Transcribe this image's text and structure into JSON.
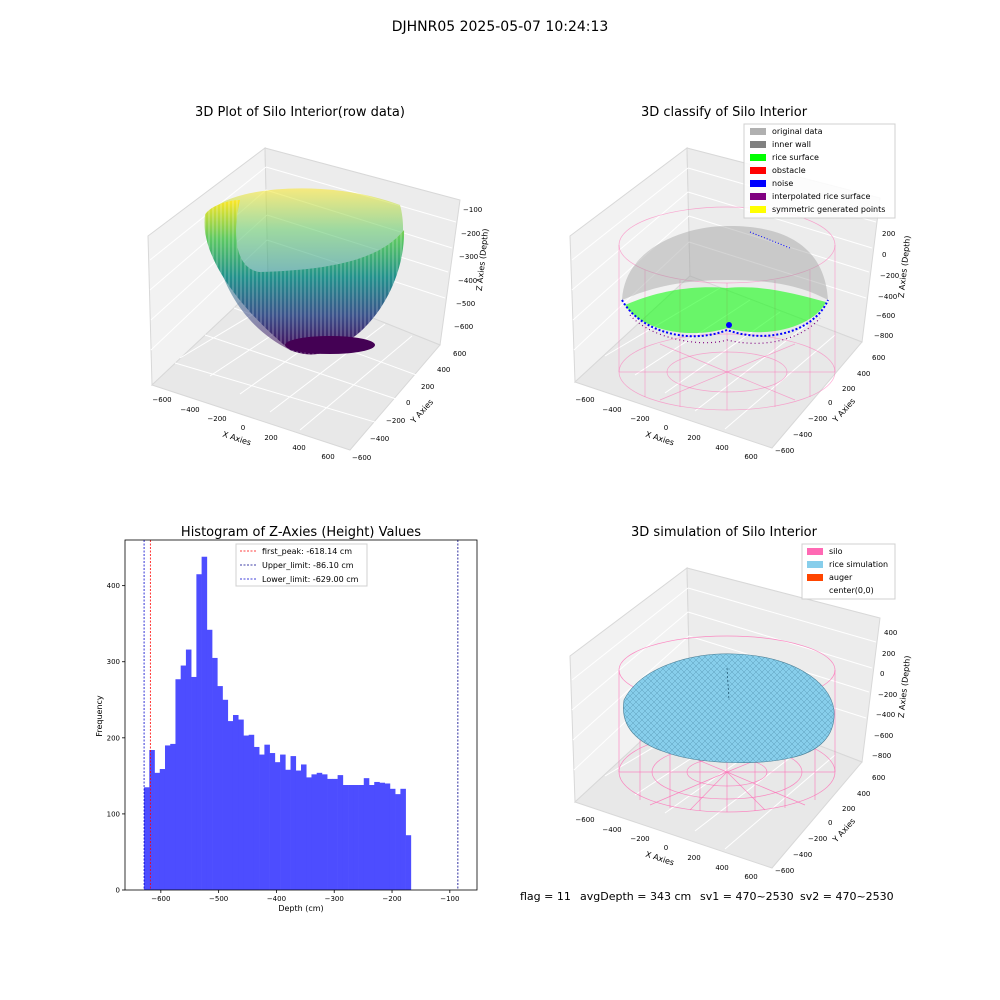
{
  "figure_title": "DJHNR05 2025-05-07 10:24:13",
  "colors": {
    "hist_bar": "#4d4dff",
    "first_peak": "#ff0000",
    "limit_line": "#00008b",
    "silo": "#ff69b4",
    "rice_sim": "#87ceeb",
    "auger": "#ff4500",
    "rice_surface": "#00ff00",
    "noise": "#0000ff"
  },
  "chart_data": [
    {
      "type": "scatter3d",
      "title": "3D Plot of Silo Interior(row data)",
      "xlabel": "X Axies",
      "ylabel": "Y Axies",
      "zlabel": "Z Axies (Depth)",
      "x_ticks": [
        "−600",
        "−400",
        "−200",
        "0",
        "200",
        "400",
        "600"
      ],
      "y_ticks": [
        "600",
        "400",
        "200",
        "0",
        "−200",
        "−400",
        "−600"
      ],
      "z_ticks": [
        "−100",
        "−200",
        "−300",
        "−400",
        "−500",
        "−600"
      ],
      "zlim": [
        -629,
        -86
      ]
    },
    {
      "type": "scatter3d",
      "title": "3D classify of Silo Interior",
      "xlabel": "X Axies",
      "ylabel": "Y Axies",
      "zlabel": "Z Axies (Depth)",
      "x_ticks": [
        "−600",
        "−400",
        "−200",
        "0",
        "200",
        "400",
        "600"
      ],
      "y_ticks": [
        "600",
        "400",
        "200",
        "0",
        "−200",
        "−400",
        "−600"
      ],
      "z_ticks": [
        "200",
        "0",
        "−200",
        "−400",
        "−600",
        "−800"
      ],
      "legend": [
        {
          "label": "original data",
          "color": "#b0b0b0"
        },
        {
          "label": "inner wall",
          "color": "#808080"
        },
        {
          "label": "rice surface",
          "color": "#00ff00"
        },
        {
          "label": "obstacle",
          "color": "#ff0000"
        },
        {
          "label": "noise",
          "color": "#0000ff"
        },
        {
          "label": "interpolated rice surface",
          "color": "#800080"
        },
        {
          "label": "symmetric generated points",
          "color": "#ffff00"
        }
      ]
    },
    {
      "type": "bar",
      "title": "Histogram of Z-Axies (Height) Values",
      "xlabel": "Depth (cm)",
      "ylabel": "Frequency",
      "xlim": [
        -662,
        -53
      ],
      "ylim": [
        0,
        460
      ],
      "x_ticks": [
        -600,
        -500,
        -400,
        -300,
        -200,
        -100
      ],
      "x_tick_labels": [
        "−600",
        "−500",
        "−400",
        "−300",
        "−200",
        "−100"
      ],
      "y_ticks": [
        0,
        100,
        200,
        300,
        400
      ],
      "y_tick_labels": [
        "0",
        "100",
        "200",
        "300",
        "400"
      ],
      "bin_start": -629,
      "bin_width": 9.05,
      "values": [
        135,
        184,
        154,
        159,
        190,
        192,
        277,
        295,
        316,
        280,
        415,
        438,
        342,
        305,
        268,
        250,
        222,
        230,
        224,
        203,
        204,
        188,
        178,
        191,
        180,
        168,
        178,
        158,
        176,
        157,
        165,
        148,
        152,
        154,
        152,
        146,
        146,
        151,
        138,
        138,
        138,
        138,
        147,
        138,
        142,
        141,
        140,
        133,
        126,
        133,
        72
      ],
      "vlines": [
        {
          "label": "first_peak: -618.14 cm",
          "x": -618.14,
          "color": "#ff0000"
        },
        {
          "label": "Upper_limit: -86.10 cm",
          "x": -86.1,
          "color": "#00008b"
        },
        {
          "label": "Lower_limit: -629.00 cm",
          "x": -629.0,
          "color": "#0000cd"
        }
      ]
    },
    {
      "type": "surface3d",
      "title": "3D simulation of Silo Interior",
      "xlabel": "X Axies",
      "ylabel": "Y Axies",
      "zlabel": "Z Axies (Depth)",
      "x_ticks": [
        "−600",
        "−400",
        "−200",
        "0",
        "200",
        "400",
        "600"
      ],
      "y_ticks": [
        "600",
        "400",
        "200",
        "0",
        "−200",
        "−400",
        "−600"
      ],
      "z_ticks": [
        "400",
        "200",
        "0",
        "−200",
        "−400",
        "−600",
        "−800"
      ],
      "legend": [
        {
          "label": "silo",
          "color": "#ff69b4"
        },
        {
          "label": "rice simulation",
          "color": "#87ceeb"
        },
        {
          "label": "auger",
          "color": "#ff4500"
        },
        {
          "label": "center(0,0)",
          "color": "#ffffff"
        }
      ]
    }
  ],
  "status": {
    "flag": "flag = 11",
    "avg_depth": "avgDepth = 343 cm",
    "sv1": "sv1 = 470~2530",
    "sv2": "sv2 = 470~2530"
  }
}
